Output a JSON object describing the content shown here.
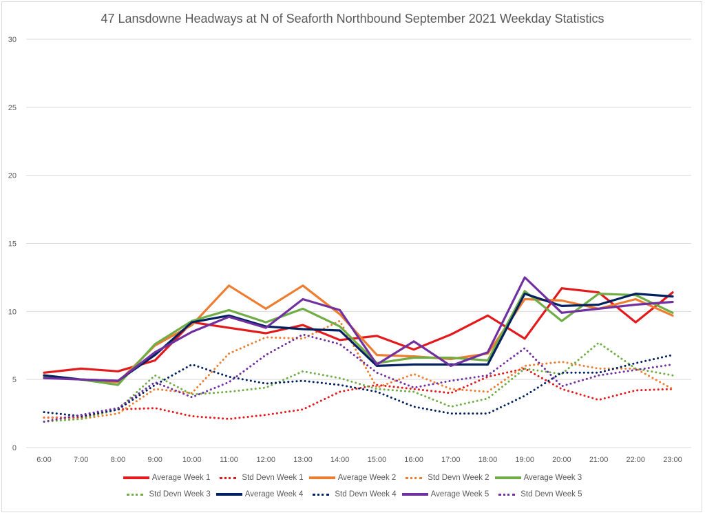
{
  "chart_data": {
    "type": "line",
    "title": "47 Lansdowne Headways at N of Seaforth Northbound September 2021 Weekday Statistics",
    "xlabel": "",
    "ylabel": "",
    "ylim": [
      0,
      30
    ],
    "yticks": [
      "0",
      "5",
      "10",
      "15",
      "20",
      "25",
      "30"
    ],
    "grid": true,
    "legend_position": "bottom",
    "categories": [
      "6:00",
      "7:00",
      "8:00",
      "9:00",
      "10:00",
      "11:00",
      "12:00",
      "13:00",
      "14:00",
      "15:00",
      "16:00",
      "17:00",
      "18:00",
      "19:00",
      "20:00",
      "21:00",
      "22:00",
      "23:00"
    ],
    "series": [
      {
        "name": "Average Week 1",
        "color": "#e31a1c",
        "style": "solid",
        "values": [
          5.5,
          5.8,
          5.6,
          6.4,
          9.2,
          8.8,
          8.4,
          9.0,
          7.9,
          8.2,
          7.2,
          8.3,
          9.7,
          8.0,
          11.7,
          11.4,
          9.2,
          11.4
        ]
      },
      {
        "name": "Std Devn Week 1",
        "color": "#e31a1c",
        "style": "dotted",
        "values": [
          2.2,
          2.2,
          2.8,
          2.9,
          2.3,
          2.1,
          2.4,
          2.8,
          4.1,
          4.6,
          4.3,
          4.0,
          5.2,
          5.8,
          4.3,
          3.5,
          4.2,
          4.3
        ]
      },
      {
        "name": "Average Week 2",
        "color": "#ed7d31",
        "style": "solid",
        "values": [
          5.3,
          5.0,
          4.8,
          7.5,
          9.0,
          11.9,
          10.2,
          11.9,
          9.8,
          6.8,
          6.7,
          6.5,
          6.9,
          10.9,
          10.8,
          10.2,
          10.9,
          9.7
        ]
      },
      {
        "name": "Std Devn Week 2",
        "color": "#ed7d31",
        "style": "dotted",
        "values": [
          2.2,
          2.1,
          2.5,
          4.3,
          4.0,
          6.9,
          8.1,
          8.0,
          9.3,
          4.4,
          5.4,
          4.3,
          4.1,
          6.0,
          6.3,
          5.8,
          5.8,
          4.3
        ]
      },
      {
        "name": "Average Week 3",
        "color": "#70ad47",
        "style": "solid",
        "values": [
          5.2,
          5.0,
          4.6,
          7.6,
          9.3,
          10.1,
          9.2,
          10.2,
          8.9,
          6.2,
          6.6,
          6.6,
          6.4,
          11.5,
          9.3,
          11.3,
          11.2,
          9.9
        ]
      },
      {
        "name": "Std Devn Week 3",
        "color": "#70ad47",
        "style": "dotted",
        "values": [
          1.9,
          2.1,
          2.8,
          5.3,
          3.9,
          4.1,
          4.4,
          5.6,
          5.1,
          4.3,
          4.1,
          3.0,
          3.6,
          5.8,
          5.4,
          7.7,
          5.8,
          5.3
        ]
      },
      {
        "name": "Average Week 4",
        "color": "#002060",
        "style": "solid",
        "values": [
          5.3,
          5.0,
          4.9,
          6.8,
          9.2,
          9.7,
          8.9,
          8.7,
          8.6,
          6.0,
          6.1,
          6.1,
          6.1,
          11.3,
          10.4,
          10.5,
          11.3,
          11.1
        ]
      },
      {
        "name": "Std Devn Week 4",
        "color": "#002060",
        "style": "dotted",
        "values": [
          2.6,
          2.3,
          2.8,
          4.6,
          6.1,
          5.2,
          4.7,
          4.9,
          4.6,
          4.1,
          3.0,
          2.5,
          2.5,
          3.8,
          5.5,
          5.5,
          6.2,
          6.8
        ]
      },
      {
        "name": "Average Week 5",
        "color": "#7030a0",
        "style": "solid",
        "values": [
          5.1,
          5.0,
          4.9,
          7.0,
          8.5,
          9.6,
          8.8,
          10.9,
          10.1,
          6.1,
          7.8,
          6.0,
          7.0,
          12.5,
          9.9,
          10.2,
          10.5,
          10.7
        ]
      },
      {
        "name": "Std Devn Week 5",
        "color": "#7030a0",
        "style": "dotted",
        "values": [
          1.9,
          2.4,
          2.9,
          4.8,
          3.7,
          4.8,
          6.8,
          8.3,
          7.6,
          5.5,
          4.4,
          4.9,
          5.3,
          7.3,
          4.5,
          5.3,
          5.7,
          6.1
        ]
      }
    ]
  }
}
